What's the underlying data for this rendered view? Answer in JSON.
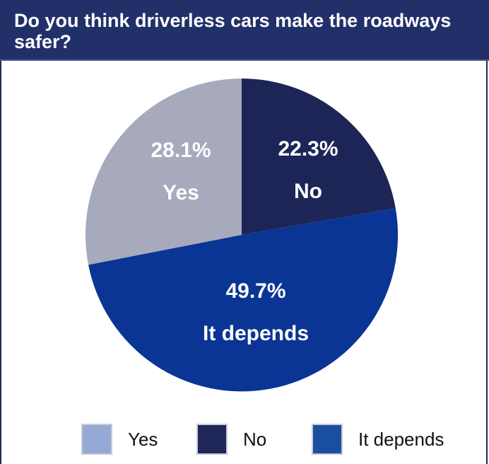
{
  "header": {
    "title": "Do you think driverless cars make the roadways safer?"
  },
  "chart_data": {
    "type": "pie",
    "slices": [
      {
        "name": "No",
        "value": 22.3,
        "value_label": "22.3%",
        "color": "#1c2556"
      },
      {
        "name": "It depends",
        "value": 49.7,
        "value_label": "49.7%",
        "color": "#0b3594"
      },
      {
        "name": "Yes",
        "value": 28.1,
        "value_label": "28.1%",
        "color": "#a7a9bc"
      }
    ],
    "start": "12 o'clock",
    "direction": "clockwise",
    "legend_position": "bottom"
  },
  "legend": {
    "items": [
      {
        "label": "Yes",
        "color": "#95a9d5"
      },
      {
        "label": "No",
        "color": "#1f2658"
      },
      {
        "label": "It depends",
        "color": "#1a4fa0"
      }
    ]
  }
}
